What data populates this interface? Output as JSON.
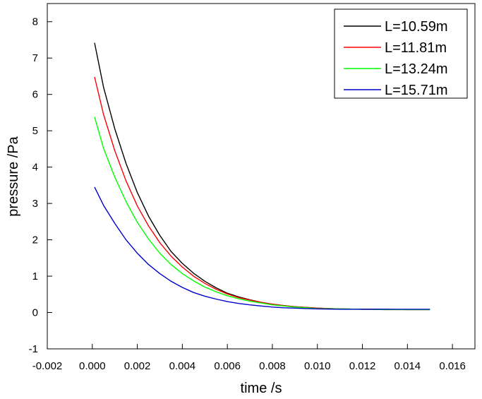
{
  "chart_data": {
    "type": "line",
    "title": "",
    "xlabel": "time /s",
    "ylabel": "pressure /Pa",
    "xlim": [
      -0.002,
      0.017
    ],
    "ylim": [
      -1,
      8.5
    ],
    "xticks": [
      -0.002,
      0.0,
      0.002,
      0.004,
      0.006,
      0.008,
      0.01,
      0.012,
      0.014,
      0.016
    ],
    "xtick_labels": [
      "-0.002",
      "0.000",
      "0.002",
      "0.004",
      "0.006",
      "0.008",
      "0.010",
      "0.012",
      "0.014",
      "0.016"
    ],
    "yticks": [
      -1,
      0,
      1,
      2,
      3,
      4,
      5,
      6,
      7,
      8
    ],
    "ytick_labels": [
      "-1",
      "0",
      "1",
      "2",
      "3",
      "4",
      "5",
      "6",
      "7",
      "8"
    ],
    "grid": false,
    "legend_position": "top-right",
    "x": [
      0.0001,
      0.0005,
      0.001,
      0.0015,
      0.002,
      0.0025,
      0.003,
      0.0035,
      0.004,
      0.0045,
      0.005,
      0.0055,
      0.006,
      0.0065,
      0.007,
      0.0075,
      0.008,
      0.0085,
      0.009,
      0.0095,
      0.01,
      0.011,
      0.012,
      0.013,
      0.014,
      0.015
    ],
    "series": [
      {
        "name": "L=10.59m",
        "color": "#000000",
        "values": [
          7.42,
          6.2,
          5.05,
          4.1,
          3.3,
          2.65,
          2.12,
          1.68,
          1.35,
          1.08,
          0.86,
          0.68,
          0.53,
          0.43,
          0.35,
          0.28,
          0.23,
          0.19,
          0.16,
          0.14,
          0.12,
          0.1,
          0.09,
          0.09,
          0.08,
          0.08
        ]
      },
      {
        "name": "L=11.81m",
        "color": "#ff0000",
        "values": [
          6.48,
          5.45,
          4.45,
          3.62,
          2.93,
          2.38,
          1.92,
          1.55,
          1.25,
          1.0,
          0.8,
          0.64,
          0.51,
          0.41,
          0.34,
          0.28,
          0.23,
          0.19,
          0.16,
          0.14,
          0.12,
          0.1,
          0.09,
          0.08,
          0.08,
          0.08
        ]
      },
      {
        "name": "L=13.24m",
        "color": "#00ff00",
        "values": [
          5.38,
          4.52,
          3.72,
          3.05,
          2.48,
          2.02,
          1.63,
          1.32,
          1.07,
          0.87,
          0.7,
          0.57,
          0.46,
          0.38,
          0.31,
          0.26,
          0.21,
          0.18,
          0.15,
          0.13,
          0.11,
          0.1,
          0.09,
          0.08,
          0.08,
          0.08
        ]
      },
      {
        "name": "L=15.71m",
        "color": "#0000cc",
        "values": [
          3.45,
          2.95,
          2.45,
          2.0,
          1.63,
          1.32,
          1.07,
          0.86,
          0.69,
          0.55,
          0.45,
          0.37,
          0.3,
          0.25,
          0.21,
          0.18,
          0.15,
          0.13,
          0.12,
          0.11,
          0.1,
          0.09,
          0.09,
          0.09,
          0.09,
          0.09
        ]
      }
    ]
  }
}
